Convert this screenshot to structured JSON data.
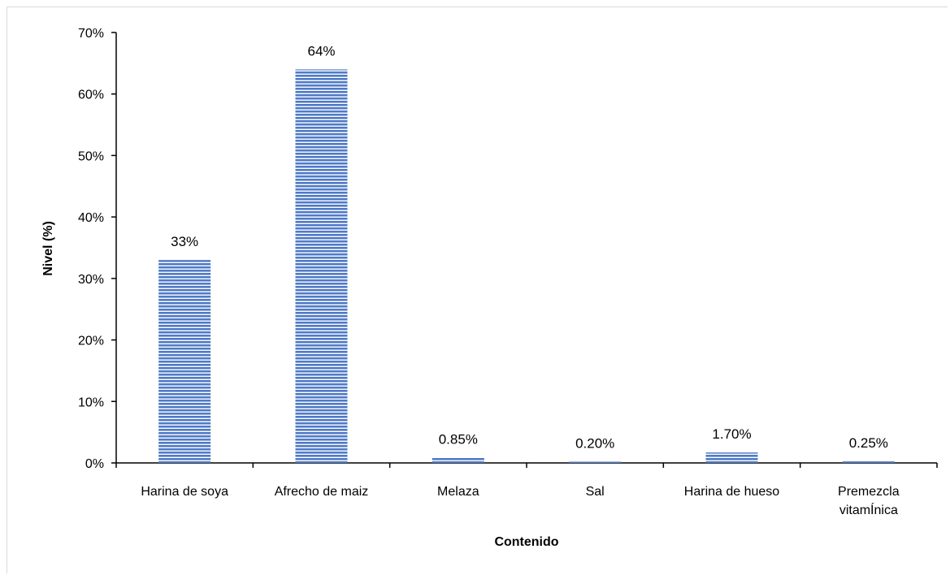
{
  "chart_data": {
    "type": "bar",
    "title": "",
    "xlabel": "Contenido",
    "ylabel": "Nivel (%)",
    "ylim": [
      0,
      70
    ],
    "yticks": [
      "0%",
      "10%",
      "20%",
      "30%",
      "40%",
      "50%",
      "60%",
      "70%"
    ],
    "categories": [
      "Harina de soya",
      "Afrecho de maiz",
      "Melaza",
      "Sal",
      "Harina de hueso",
      "Premezcla vitamÍnica"
    ],
    "values": [
      33,
      64,
      0.85,
      0.2,
      1.7,
      0.25
    ],
    "data_labels": [
      "33%",
      "64%",
      "0.85%",
      "0.20%",
      "1.70%",
      "0.25%"
    ],
    "grid": false,
    "legend": "none",
    "bar_color": "#4f7ac7",
    "bar_fill_pattern": "horizontal-stripes"
  }
}
